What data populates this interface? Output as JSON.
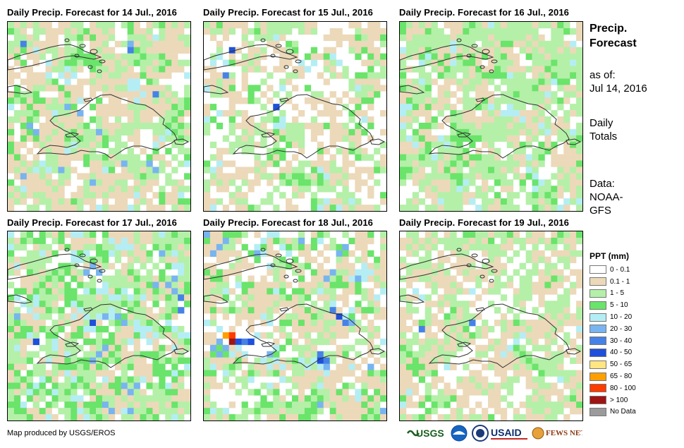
{
  "panels": [
    {
      "title": "Daily Precip. Forecast for 14 Jul., 2016"
    },
    {
      "title": "Daily Precip. Forecast for 15 Jul., 2016"
    },
    {
      "title": "Daily Precip. Forecast for 16 Jul., 2016"
    },
    {
      "title": "Daily Precip. Forecast for 17 Jul., 2016"
    },
    {
      "title": "Daily Precip. Forecast for 18 Jul., 2016"
    },
    {
      "title": "Daily Precip. Forecast for 19 Jul., 2016"
    }
  ],
  "side_info": {
    "title_line1": "Precip.",
    "title_line2": "Forecast",
    "asof_line1": "as of:",
    "asof_line2": "Jul 14, 2016",
    "totals_line1": "Daily",
    "totals_line2": "Totals",
    "data_line1": "Data:",
    "data_line2": "NOAA-",
    "data_line3": "GFS"
  },
  "legend": {
    "title": "PPT (mm)",
    "items": [
      {
        "label": "0 - 0.1",
        "color": "#ffffff"
      },
      {
        "label": "0.1 - 1",
        "color": "#ecd9b9"
      },
      {
        "label": "1 - 5",
        "color": "#b4f0a8"
      },
      {
        "label": "5 - 10",
        "color": "#6ae46a"
      },
      {
        "label": "10 - 20",
        "color": "#b4eef4"
      },
      {
        "label": "20 - 30",
        "color": "#78b4f0"
      },
      {
        "label": "30 - 40",
        "color": "#4682e6"
      },
      {
        "label": "40 - 50",
        "color": "#1e50dc"
      },
      {
        "label": "50 - 65",
        "color": "#ffe682"
      },
      {
        "label": "65 - 80",
        "color": "#ffa000"
      },
      {
        "label": "80 - 100",
        "color": "#ff3c00"
      },
      {
        "label": "> 100",
        "color": "#a01414"
      },
      {
        "label": "No Data",
        "color": "#9b9b9b"
      }
    ]
  },
  "footer": {
    "credit": "Map produced by USGS/EROS"
  },
  "logos": {
    "usgs": "USGS",
    "usaid": "USAID",
    "fewsnet": "FEWS NET"
  }
}
